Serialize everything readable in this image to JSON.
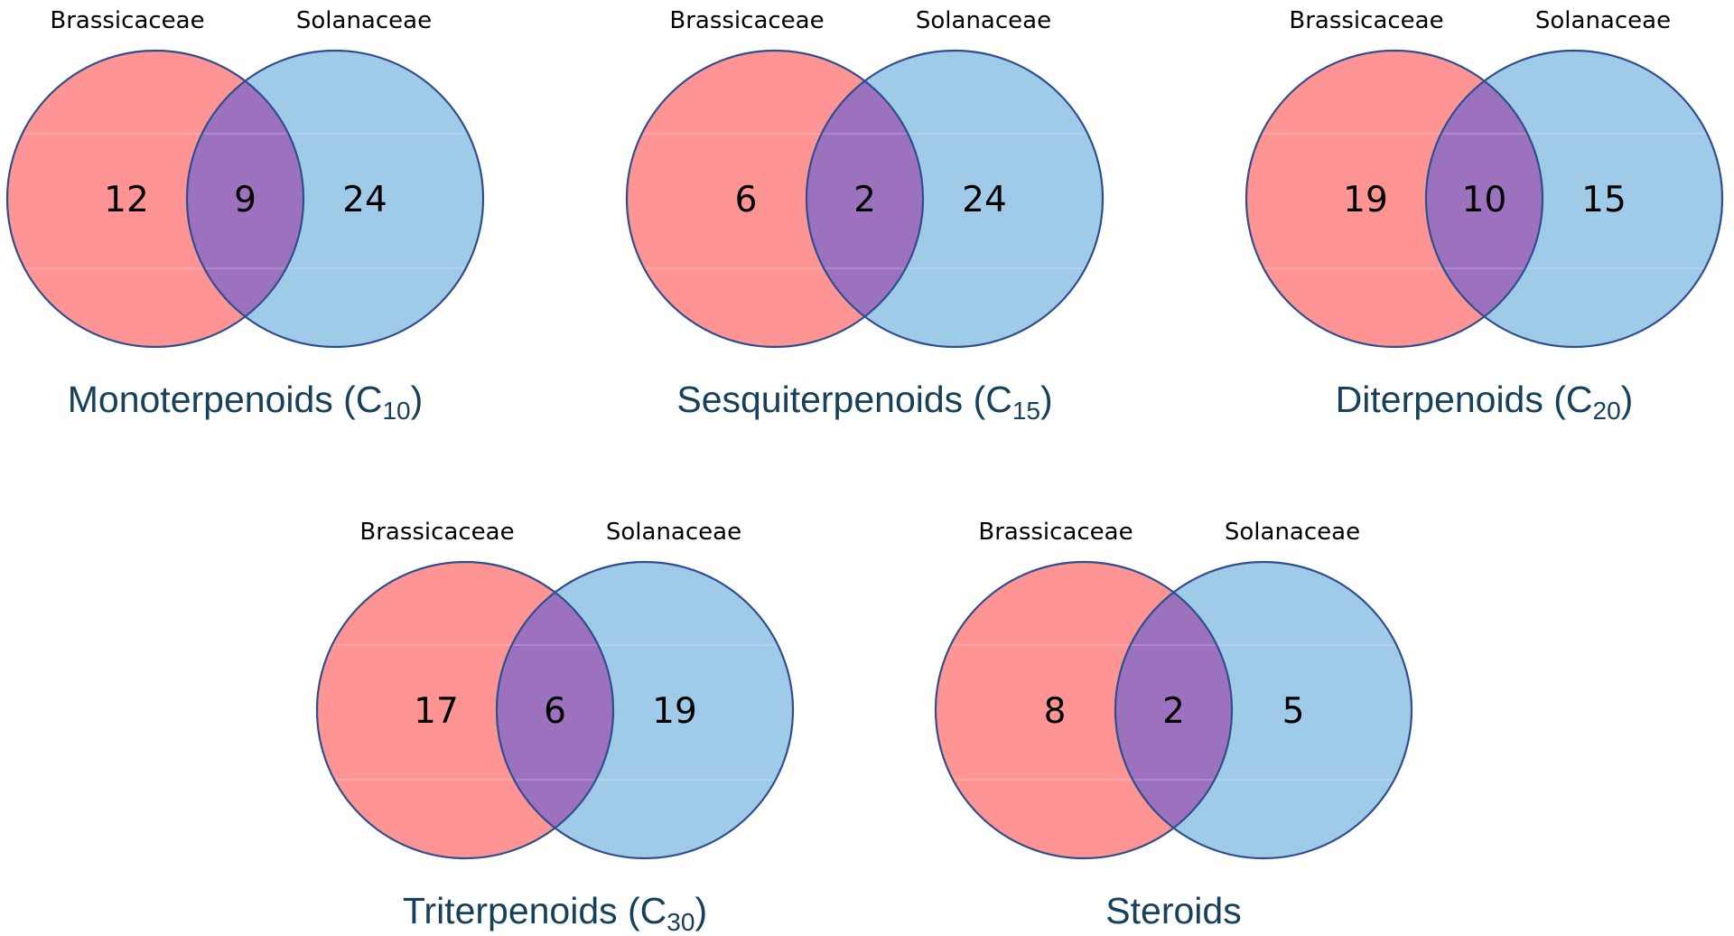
{
  "chart_data": {
    "type": "venn",
    "title": "",
    "colors": {
      "set_a": "#ff9494",
      "set_b": "#9fcae8",
      "overlap": "#9c72be",
      "outline": "#2f4e8e",
      "title_text": "#17405a",
      "label_text": "#000000"
    },
    "set_names": [
      "Brassicaceae",
      "Solanaceae"
    ],
    "panels": [
      {
        "title": "Monoterpenoids (C",
        "title_subscript": "10",
        "title_suffix": ")",
        "set_a_label": "Brassicaceae",
        "set_b_label": "Solanaceae",
        "only_a": "12",
        "both": "9",
        "only_b": "24"
      },
      {
        "title": "Sesquiterpenoids (C",
        "title_subscript": "15",
        "title_suffix": ")",
        "set_a_label": "Brassicaceae",
        "set_b_label": "Solanaceae",
        "only_a": "6",
        "both": "2",
        "only_b": "24"
      },
      {
        "title": "Diterpenoids (C",
        "title_subscript": "20",
        "title_suffix": ")",
        "set_a_label": "Brassicaceae",
        "set_b_label": "Solanaceae",
        "only_a": "19",
        "both": "10",
        "only_b": "15"
      },
      {
        "title": "Triterpenoids (C",
        "title_subscript": "30",
        "title_suffix": ")",
        "set_a_label": "Brassicaceae",
        "set_b_label": "Solanaceae",
        "only_a": "17",
        "both": "6",
        "only_b": "19"
      },
      {
        "title": "Steroids",
        "title_subscript": "",
        "title_suffix": "",
        "set_a_label": "Brassicaceae",
        "set_b_label": "Solanaceae",
        "only_a": "8",
        "both": "2",
        "only_b": "5"
      }
    ]
  }
}
